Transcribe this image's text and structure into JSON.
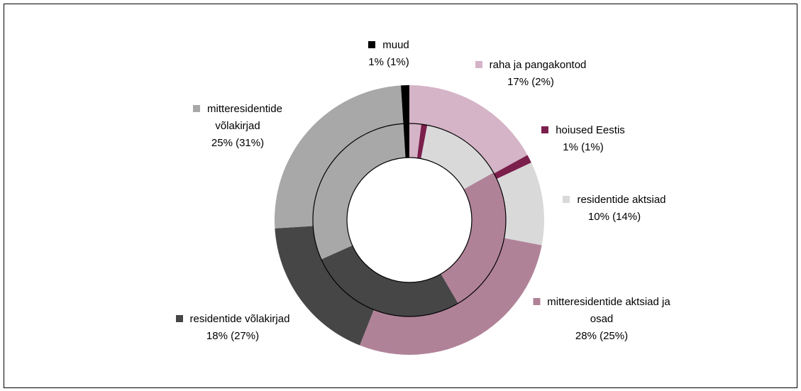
{
  "chart_data": {
    "type": "doughnut",
    "categories": [
      "raha ja pangakontod",
      "hoiused Eestis",
      "residentide aktsiad",
      "mitteresidentide aktsiad ja osad",
      "residentide võlakirjad",
      "mitteresidentide võlakirjad",
      "muud"
    ],
    "colors": [
      "#d5b4c7",
      "#7b1f4c",
      "#d9d9d9",
      "#b08298",
      "#464646",
      "#a8a8a8",
      "#000000"
    ],
    "series": [
      {
        "values": [
          17,
          1,
          10,
          28,
          18,
          25,
          1
        ],
        "value_labels": [
          "17% (2%)",
          "1% (1%)",
          "10% (14%)",
          "28% (25%)",
          "18% (27%)",
          "25% (31%)",
          "1% (1%)"
        ]
      },
      {
        "values": [
          2,
          1,
          14,
          25,
          27,
          31,
          1
        ]
      }
    ]
  }
}
